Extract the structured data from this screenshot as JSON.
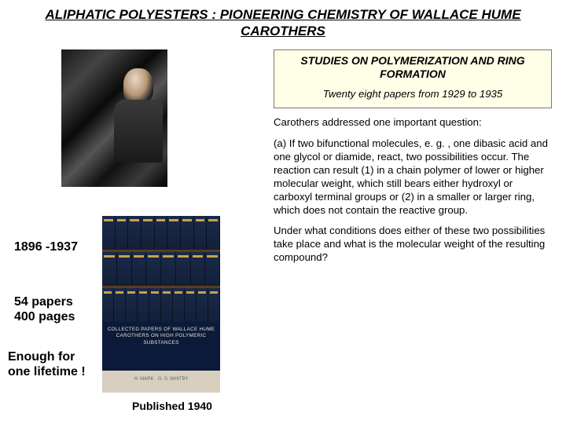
{
  "title": "ALIPHATIC POLYESTERS : PIONEERING CHEMISTRY OF WALLACE  HUME  CAROTHERS",
  "left": {
    "years": "1896 -1937",
    "papers_line1": "54 papers",
    "papers_line2": "400 pages",
    "enough_line1": "Enough for",
    "enough_line2": "one lifetime !",
    "published": "Published 1940",
    "book_band": "COLLECTED PAPERS OF WALLACE HUME CAROTHERS ON HIGH POLYMERIC SUBSTANCES",
    "book_foot": "H. MARK · G. S. WHITBY"
  },
  "right": {
    "box_title": "STUDIES ON POLYMERIZATION AND RING FORMATION",
    "box_sub": "Twenty eight  papers  from 1929 to 1935",
    "p1": "Carothers addressed one important question:",
    "p2": "(a) If two bifunctional  molecules, e. g. , one dibasic acid and one glycol or diamide, react, two possibilities occur. The reaction can result (1) in a chain polymer of lower or higher molecular weight, which still bears either hydroxyl or carboxyl  terminal groups or (2) in a smaller or larger ring, which does not contain the reactive group.",
    "p3": "Under what conditions does either of these two possibilities take place and what is the molecular weight of the resulting compound?"
  },
  "colors": {
    "box_bg": "#ffffe8",
    "box_border": "#777777",
    "book_band_bg": "#0b1a3a",
    "book_band_fg": "#e8e0cc",
    "spine_bg": "#1b2a4a"
  }
}
